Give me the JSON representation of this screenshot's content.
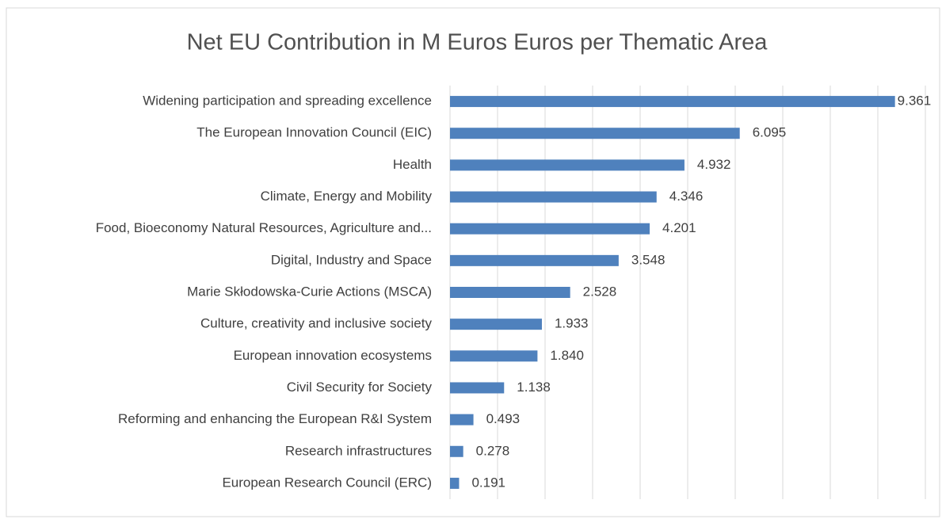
{
  "chart_data": {
    "type": "bar",
    "orientation": "horizontal",
    "title": "Net EU Contribution in M Euros Euros per Thematic Area",
    "categories": [
      "Widening participation and spreading excellence",
      "The European Innovation Council (EIC)",
      "Health",
      "Climate, Energy and Mobility",
      "Food, Bioeconomy Natural Resources, Agriculture and...",
      "Digital, Industry and Space",
      "Marie Skłodowska-Curie Actions (MSCA)",
      "Culture, creativity and inclusive society",
      "European innovation ecosystems",
      "Civil Security for Society",
      "Reforming and enhancing the European R&I System",
      "Research infrastructures",
      "European Research Council (ERC)"
    ],
    "values": [
      9.361,
      6.095,
      4.932,
      4.346,
      4.201,
      3.548,
      2.528,
      1.933,
      1.84,
      1.138,
      0.493,
      0.278,
      0.191
    ],
    "value_labels": [
      "9.361",
      "6.095",
      "4.932",
      "4.346",
      "4.201",
      "3.548",
      "2.528",
      "1.933",
      "1.840",
      "1.138",
      "0.493",
      "0.278",
      "0.191"
    ],
    "color": "#4f81bd",
    "xlim": [
      0,
      10
    ],
    "xticks": [
      0,
      1,
      2,
      3,
      4,
      5,
      6,
      7,
      8,
      9,
      10
    ],
    "grid": true
  }
}
